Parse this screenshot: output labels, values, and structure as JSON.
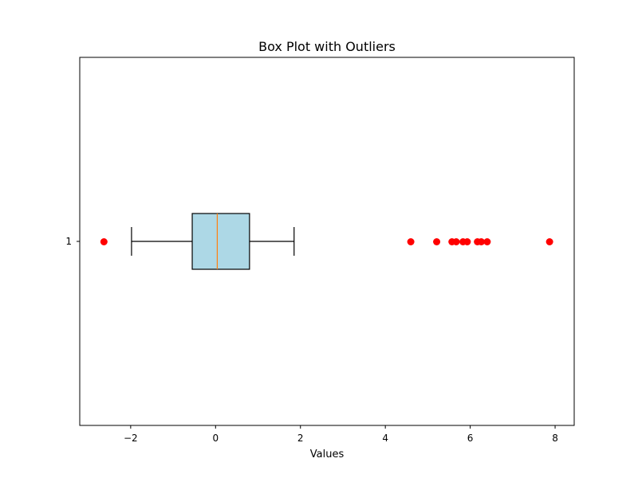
{
  "chart_data": {
    "type": "boxplot",
    "orientation": "horizontal",
    "title": "Box Plot with Outliers",
    "xlabel": "Values",
    "ylabel": "",
    "xlim": [
      -3.2,
      8.45
    ],
    "xticks": [
      -2,
      0,
      2,
      4,
      6,
      8
    ],
    "xtick_labels": [
      "−2",
      "0",
      "2",
      "4",
      "6",
      "8"
    ],
    "categories": [
      "1"
    ],
    "grid": false,
    "series": [
      {
        "whisker_low": -1.98,
        "q1": -0.55,
        "median": 0.04,
        "q3": 0.8,
        "whisker_high": 1.85,
        "outliers": [
          -2.63,
          4.6,
          5.21,
          5.57,
          5.67,
          5.83,
          5.93,
          6.17,
          6.26,
          6.4,
          7.87
        ]
      }
    ],
    "colors": {
      "box_fill": "#add8e6",
      "box_edge": "#000000",
      "median": "#ff7f0e",
      "outlier": "#ff0000",
      "axis": "#000000"
    }
  }
}
